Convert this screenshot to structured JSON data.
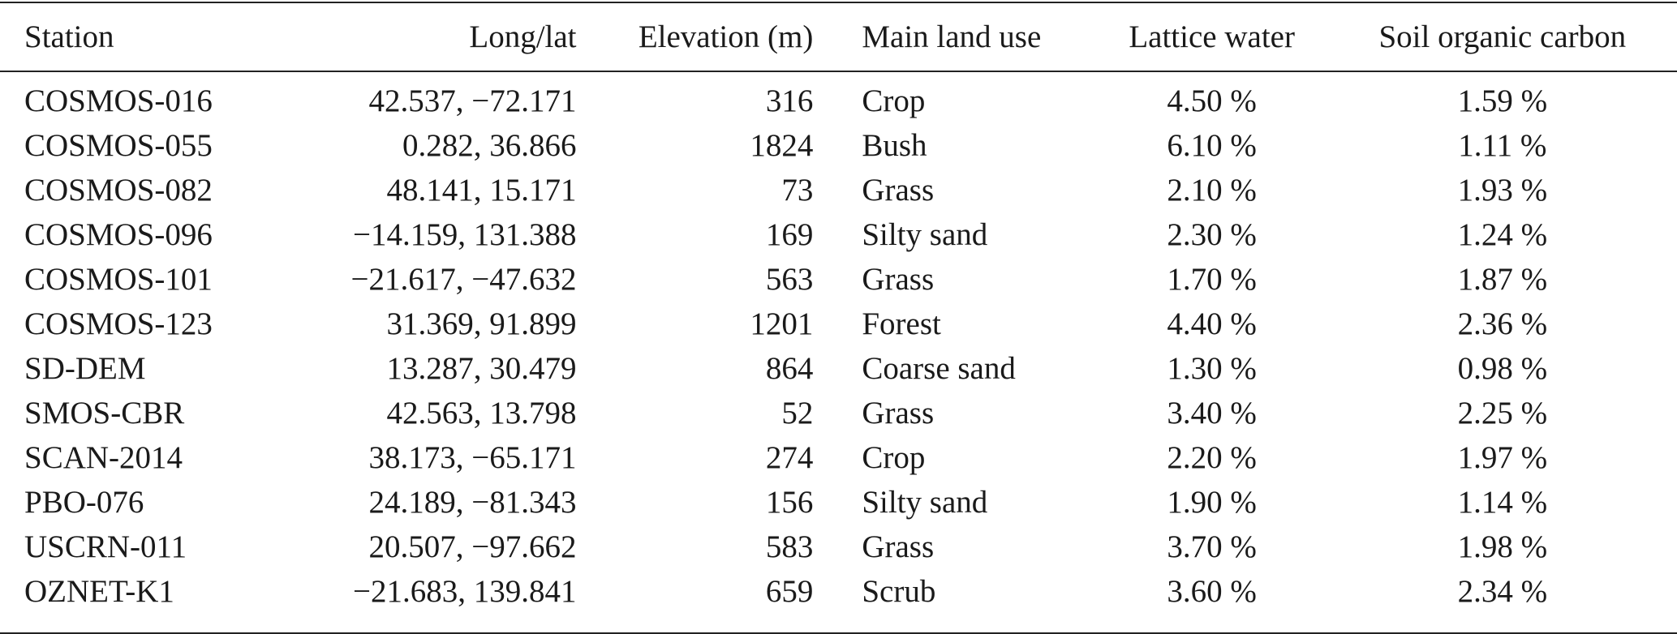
{
  "table": {
    "headers": {
      "station": "Station",
      "longlat": "Long/lat",
      "elevation": "Elevation (m)",
      "land_use": "Main land use",
      "lattice_water": "Lattice water",
      "soc": "Soil organic carbon"
    },
    "rows": [
      {
        "station": "COSMOS-016",
        "longlat": "42.537, −72.171",
        "elevation": "316",
        "land_use": "Crop",
        "lattice_water": "4.50 %",
        "soc": "1.59 %"
      },
      {
        "station": "COSMOS-055",
        "longlat": "0.282, 36.866",
        "elevation": "1824",
        "land_use": "Bush",
        "lattice_water": "6.10 %",
        "soc": "1.11 %"
      },
      {
        "station": "COSMOS-082",
        "longlat": "48.141, 15.171",
        "elevation": "73",
        "land_use": "Grass",
        "lattice_water": "2.10 %",
        "soc": "1.93 %"
      },
      {
        "station": "COSMOS-096",
        "longlat": "−14.159, 131.388",
        "elevation": "169",
        "land_use": "Silty sand",
        "lattice_water": "2.30 %",
        "soc": "1.24 %"
      },
      {
        "station": "COSMOS-101",
        "longlat": "−21.617, −47.632",
        "elevation": "563",
        "land_use": "Grass",
        "lattice_water": "1.70 %",
        "soc": "1.87 %"
      },
      {
        "station": "COSMOS-123",
        "longlat": "31.369, 91.899",
        "elevation": "1201",
        "land_use": "Forest",
        "lattice_water": "4.40 %",
        "soc": "2.36 %"
      },
      {
        "station": "SD-DEM",
        "longlat": "13.287, 30.479",
        "elevation": "864",
        "land_use": "Coarse sand",
        "lattice_water": "1.30 %",
        "soc": "0.98 %"
      },
      {
        "station": "SMOS-CBR",
        "longlat": "42.563, 13.798",
        "elevation": "52",
        "land_use": "Grass",
        "lattice_water": "3.40 %",
        "soc": "2.25 %"
      },
      {
        "station": "SCAN-2014",
        "longlat": "38.173, −65.171",
        "elevation": "274",
        "land_use": "Crop",
        "lattice_water": "2.20 %",
        "soc": "1.97 %"
      },
      {
        "station": "PBO-076",
        "longlat": "24.189, −81.343",
        "elevation": "156",
        "land_use": "Silty sand",
        "lattice_water": "1.90 %",
        "soc": "1.14 %"
      },
      {
        "station": "USCRN-011",
        "longlat": "20.507, −97.662",
        "elevation": "583",
        "land_use": "Grass",
        "lattice_water": "3.70 %",
        "soc": "1.98 %"
      },
      {
        "station": "OZNET-K1",
        "longlat": "−21.683, 139.841",
        "elevation": "659",
        "land_use": "Scrub",
        "lattice_water": "3.60 %",
        "soc": "2.34 %"
      }
    ]
  }
}
